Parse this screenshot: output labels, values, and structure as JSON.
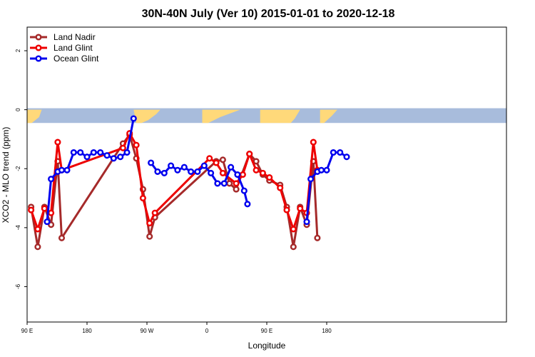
{
  "chart_data": {
    "type": "line",
    "title": "30N-40N July (Ver 10)   2015-01-01 to 2020-12-18",
    "xlabel": "Longitude",
    "ylabel": "XCO2 - MLO trend (ppm)",
    "xlim": [
      90,
      810
    ],
    "ylim": [
      -7.2,
      2.8
    ],
    "x_ticks": [
      {
        "value": 90,
        "label": "90 E"
      },
      {
        "value": 180,
        "label": "180"
      },
      {
        "value": 270,
        "label": "90 W"
      },
      {
        "value": 360,
        "label": "0"
      },
      {
        "value": 450,
        "label": "90 E"
      },
      {
        "value": 540,
        "label": "180"
      }
    ],
    "y_ticks": [
      {
        "value": 2,
        "label": "2"
      },
      {
        "value": 0,
        "label": "0"
      },
      {
        "value": -2,
        "label": "-2"
      },
      {
        "value": -4,
        "label": "-4"
      },
      {
        "value": -6,
        "label": "-6"
      }
    ],
    "legend_position": "top-left",
    "map_strip": {
      "y_top": 0.05,
      "y_bottom": -0.45,
      "ocean_color": "#a8bcdc",
      "land_color": "#ffd97a"
    },
    "series": [
      {
        "name": "Land Nadir",
        "color": "#a52a2a",
        "points": [
          [
            96,
            -3.3
          ],
          [
            106,
            -4.65
          ],
          [
            116,
            -3.3
          ],
          [
            126,
            -3.9
          ],
          [
            136,
            -1.75
          ],
          [
            142,
            -4.35
          ],
          [
            234,
            -1.15
          ],
          [
            244,
            -0.85
          ],
          [
            254,
            -1.65
          ],
          [
            264,
            -2.7
          ],
          [
            274,
            -4.3
          ],
          [
            282,
            -3.65
          ],
          [
            374,
            -1.75
          ],
          [
            384,
            -1.7
          ],
          [
            394,
            -2.5
          ],
          [
            404,
            -2.7
          ],
          [
            424,
            -1.5
          ],
          [
            434,
            -1.75
          ],
          [
            444,
            -2.2
          ],
          [
            454,
            -2.4
          ],
          [
            470,
            -2.55
          ],
          [
            480,
            -3.3
          ],
          [
            490,
            -4.65
          ],
          [
            500,
            -3.3
          ],
          [
            510,
            -3.9
          ],
          [
            520,
            -1.75
          ],
          [
            526,
            -4.35
          ]
        ]
      },
      {
        "name": "Land Glint",
        "color": "#ee0000",
        "points": [
          [
            96,
            -3.4
          ],
          [
            106,
            -4.05
          ],
          [
            116,
            -3.35
          ],
          [
            126,
            -3.5
          ],
          [
            136,
            -1.1
          ],
          [
            142,
            -2.05
          ],
          [
            234,
            -1.3
          ],
          [
            244,
            -0.8
          ],
          [
            254,
            -1.2
          ],
          [
            264,
            -3.0
          ],
          [
            274,
            -3.85
          ],
          [
            282,
            -3.5
          ],
          [
            364,
            -1.65
          ],
          [
            374,
            -1.8
          ],
          [
            384,
            -2.15
          ],
          [
            404,
            -2.5
          ],
          [
            414,
            -2.2
          ],
          [
            424,
            -1.5
          ],
          [
            434,
            -2.05
          ],
          [
            444,
            -2.15
          ],
          [
            454,
            -2.3
          ],
          [
            470,
            -2.65
          ],
          [
            480,
            -3.4
          ],
          [
            490,
            -4.05
          ],
          [
            500,
            -3.35
          ],
          [
            510,
            -3.5
          ],
          [
            520,
            -1.1
          ],
          [
            526,
            -2.05
          ]
        ]
      },
      {
        "name": "Ocean Glint",
        "color": "#0000ee",
        "points": [
          [
            [
              120,
              -3.8
            ],
            [
              126,
              -2.35
            ],
            [
              136,
              -2.1
            ],
            [
              142,
              -2.05
            ],
            [
              150,
              -2.05
            ],
            [
              160,
              -1.45
            ],
            [
              170,
              -1.45
            ],
            [
              180,
              -1.6
            ],
            [
              190,
              -1.45
            ],
            [
              200,
              -1.45
            ],
            [
              210,
              -1.55
            ],
            [
              220,
              -1.65
            ],
            [
              230,
              -1.6
            ],
            [
              240,
              -1.45
            ],
            [
              250,
              -0.3
            ]
          ],
          [
            [
              276,
              -1.8
            ],
            [
              286,
              -2.1
            ],
            [
              296,
              -2.15
            ],
            [
              306,
              -1.9
            ],
            [
              316,
              -2.05
            ],
            [
              326,
              -1.95
            ],
            [
              336,
              -2.1
            ],
            [
              346,
              -2.1
            ],
            [
              356,
              -1.9
            ],
            [
              366,
              -2.15
            ],
            [
              376,
              -2.5
            ],
            [
              386,
              -2.5
            ],
            [
              396,
              -1.95
            ],
            [
              406,
              -2.2
            ],
            [
              416,
              -2.75
            ],
            [
              421,
              -3.2
            ]
          ],
          [
            [
              510,
              -3.8
            ],
            [
              516,
              -2.35
            ],
            [
              526,
              -2.1
            ],
            [
              532,
              -2.05
            ],
            [
              540,
              -2.05
            ],
            [
              550,
              -1.45
            ],
            [
              560,
              -1.45
            ],
            [
              570,
              -1.6
            ]
          ]
        ]
      }
    ]
  }
}
